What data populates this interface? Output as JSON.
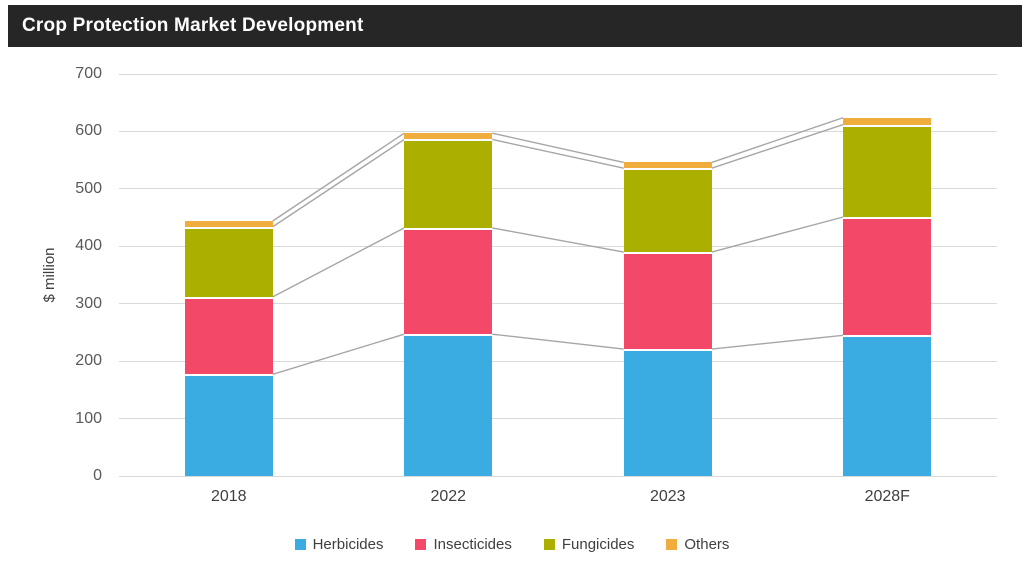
{
  "header": {
    "title": "Crop Protection Market Development"
  },
  "chart_data": {
    "type": "bar",
    "stacked": true,
    "categories": [
      "2018",
      "2022",
      "2023",
      "2028F"
    ],
    "series": [
      {
        "name": "Herbicides",
        "color": "#3BACE2",
        "values": [
          177,
          247,
          221,
          245
        ]
      },
      {
        "name": "Insecticides",
        "color": "#F44869",
        "values": [
          135,
          185,
          169,
          206
        ]
      },
      {
        "name": "Fungicides",
        "color": "#ABB000",
        "values": [
          122,
          154,
          146,
          161
        ]
      },
      {
        "name": "Others",
        "color": "#F0AC3C",
        "values": [
          10,
          11,
          10,
          12
        ]
      }
    ],
    "totals": [
      444,
      597,
      546,
      624
    ],
    "title": "Crop Protection Market Development",
    "xlabel": "",
    "ylabel": "$ million",
    "ylim": [
      0,
      700
    ],
    "ytick_step": 100,
    "yticks": [
      "0",
      "100",
      "200",
      "300",
      "400",
      "500",
      "600",
      "700"
    ],
    "grid": true,
    "legend_position": "bottom",
    "series_connector_lines": true
  },
  "colors": {
    "title_bar_bg": "#262626",
    "title_text": "#FFFFFF",
    "gridline": "#D9D9D9",
    "connector_line": "#A6A6A6",
    "axis_tick_text": "#595959",
    "label_text": "#404040",
    "background": "#FFFFFF"
  }
}
